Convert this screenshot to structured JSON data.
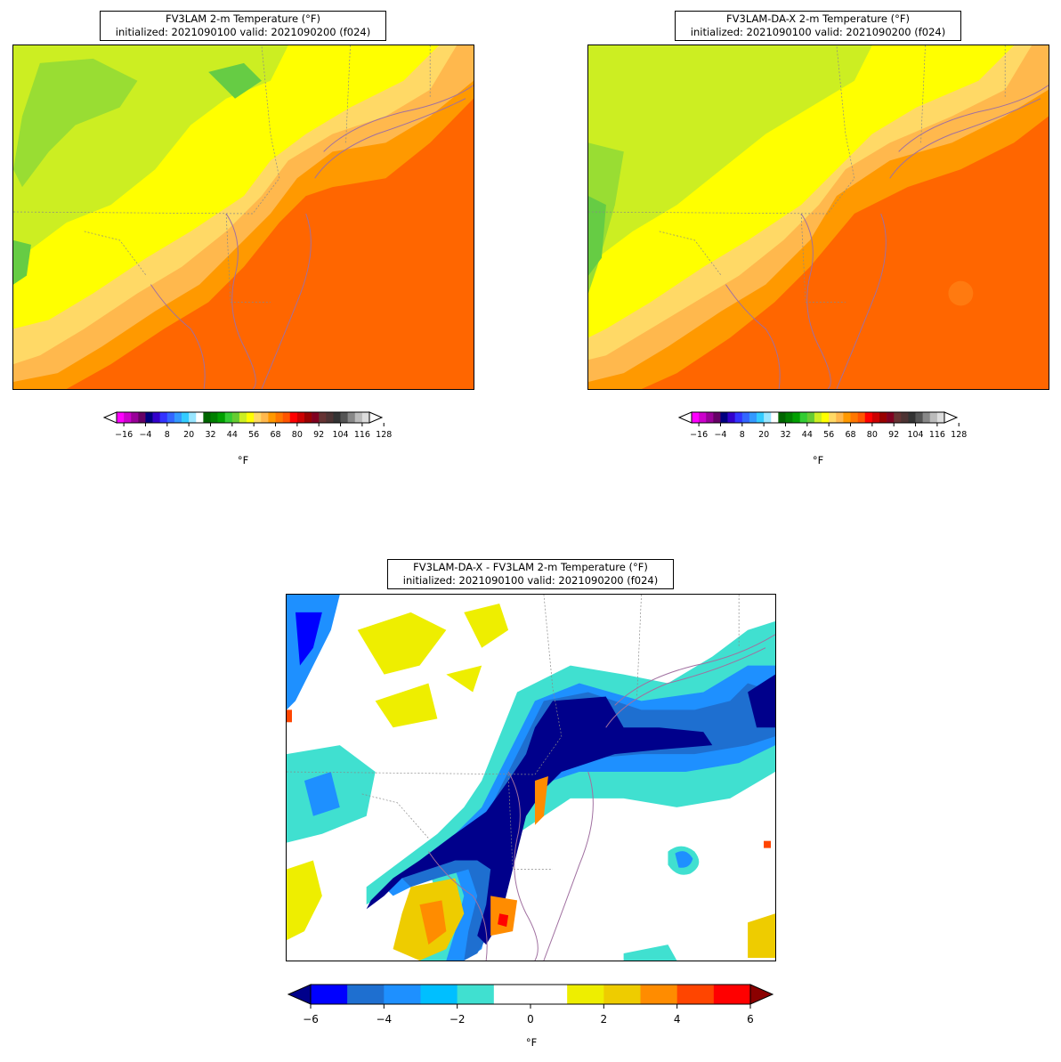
{
  "panels": [
    {
      "id": "fv3lam",
      "title_line1": "FV3LAM 2-m Temperature (°F)",
      "title_line2": "initialized: 2021090100 valid: 2021090200 (f024)",
      "colorbar_ticks": [
        "−16",
        "−4",
        "8",
        "20",
        "32",
        "44",
        "56",
        "68",
        "80",
        "92",
        "104",
        "116",
        "128"
      ],
      "unit": "°F"
    },
    {
      "id": "fv3lam-da-x",
      "title_line1": "FV3LAM-DA-X 2-m Temperature (°F)",
      "title_line2": "initialized: 2021090100 valid: 2021090200 (f024)",
      "colorbar_ticks": [
        "−16",
        "−4",
        "8",
        "20",
        "32",
        "44",
        "56",
        "68",
        "80",
        "92",
        "104",
        "116",
        "128"
      ],
      "unit": "°F"
    },
    {
      "id": "difference",
      "title_line1": "FV3LAM-DA-X - FV3LAM 2-m Temperature (°F)",
      "title_line2": "initialized: 2021090100 valid: 2021090200 (f024)",
      "colorbar_ticks": [
        "−6",
        "−4",
        "−2",
        "0",
        "2",
        "4",
        "6"
      ],
      "unit": "°F"
    }
  ],
  "colors": {
    "temperature_scale": [
      "#ff00ff",
      "#cc00cc",
      "#990099",
      "#660066",
      "#000080",
      "#3300cc",
      "#3333ff",
      "#3366ff",
      "#3399ff",
      "#33ccff",
      "#99e6ff",
      "#ffffff",
      "#006600",
      "#008000",
      "#00a000",
      "#33cc33",
      "#66cc33",
      "#ccee22",
      "#ffff00",
      "#ffd966",
      "#ffb84d",
      "#ff9900",
      "#ff7700",
      "#ff5500",
      "#ff0000",
      "#cc0000",
      "#990000",
      "#800020",
      "#663333",
      "#4d3333",
      "#333333",
      "#555555",
      "#888888",
      "#bbbbbb",
      "#dddddd"
    ],
    "difference_scale": [
      "#0000ff",
      "#1e6fd0",
      "#1e90ff",
      "#00bfff",
      "#40e0d0",
      "#ffffff",
      "#ffffff",
      "#eeee00",
      "#eecc00",
      "#ff8c00",
      "#ff4500",
      "#ff0000"
    ],
    "difference_under": "#00008b",
    "difference_over": "#8b0000",
    "coastline": "#a070a0",
    "state_border": "#888888"
  }
}
